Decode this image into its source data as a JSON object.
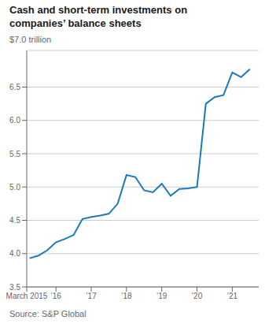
{
  "chart_data": {
    "type": "line",
    "title": "Cash and short-term investments on\ncompanies’ balance sheets",
    "subtitle": "$7.0 trillion",
    "source": "Source: S&P Global",
    "x": [
      2015.25,
      2015.5,
      2015.75,
      2016.0,
      2016.25,
      2016.5,
      2016.75,
      2017.0,
      2017.25,
      2017.5,
      2017.75,
      2018.0,
      2018.25,
      2018.5,
      2018.75,
      2019.0,
      2019.25,
      2019.5,
      2019.75,
      2020.0,
      2020.25,
      2020.5,
      2020.75,
      2021.0,
      2021.25,
      2021.5
    ],
    "values": [
      3.93,
      3.97,
      4.05,
      4.17,
      4.22,
      4.28,
      4.52,
      4.55,
      4.57,
      4.6,
      4.75,
      5.18,
      5.15,
      4.95,
      4.92,
      5.05,
      4.87,
      4.97,
      4.98,
      5.0,
      6.25,
      6.35,
      6.38,
      6.72,
      6.65,
      6.77
    ],
    "color": "#1a7ab5",
    "xlim": [
      2015.17,
      2021.75
    ],
    "ylim": [
      3.5,
      7.05
    ],
    "yticks": [
      3.5,
      {
        "value": 4.0,
        "label": "4.0"
      },
      4.5,
      {
        "value": 5.0,
        "label": "5.0"
      },
      5.5,
      {
        "value": 6.0,
        "label": "6.0"
      },
      6.5
    ],
    "xticks": [
      {
        "value": 2015.17,
        "label": "March 2015"
      },
      {
        "value": 2016,
        "label": "’16"
      },
      {
        "value": 2017,
        "label": "’17"
      },
      {
        "value": 2018,
        "label": "’18"
      },
      {
        "value": 2019,
        "label": "’19"
      },
      {
        "value": 2020,
        "label": "’20"
      },
      {
        "value": 2021,
        "label": "’21"
      }
    ],
    "grid": true
  }
}
